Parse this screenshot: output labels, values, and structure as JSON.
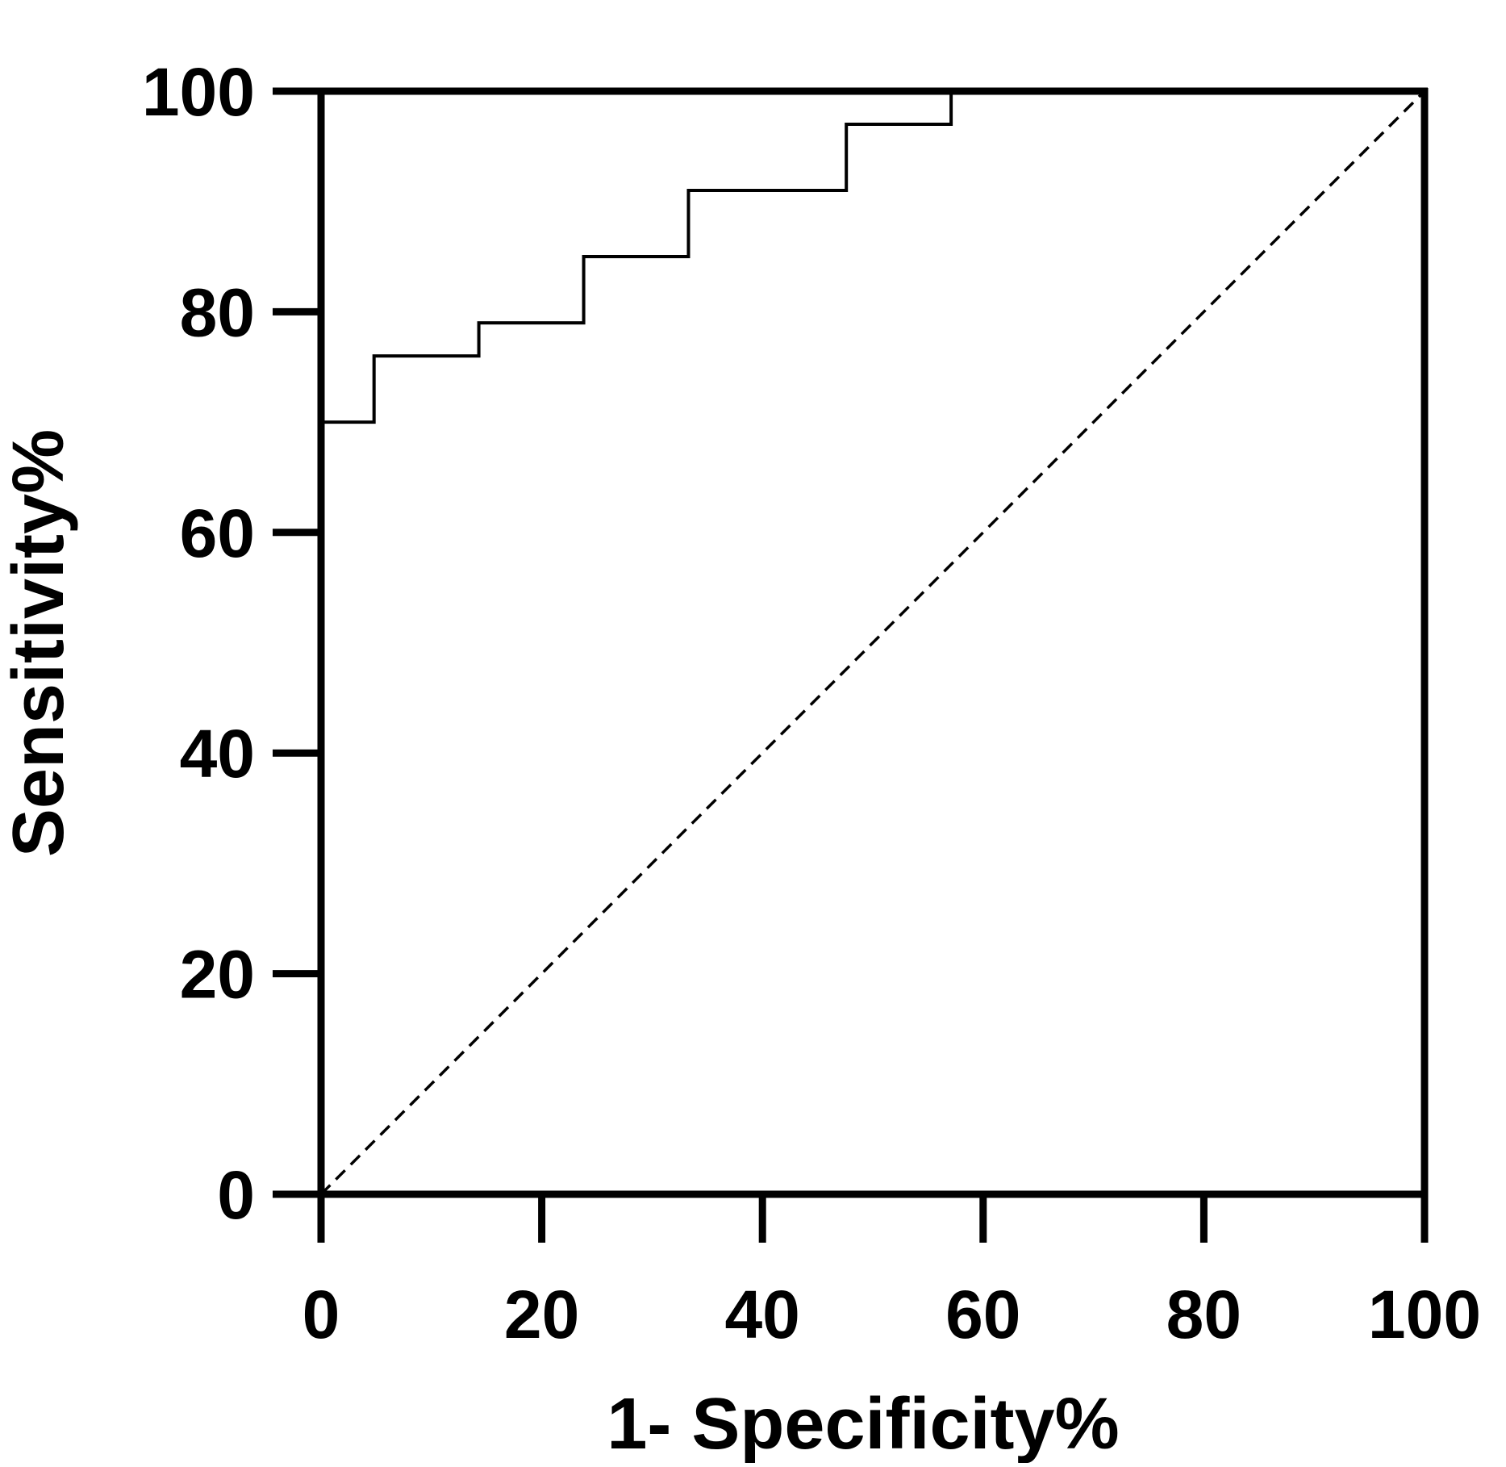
{
  "chart_data": {
    "type": "line",
    "title": "",
    "xlabel": "1- Specificity%",
    "ylabel": "Sensitivity%",
    "xlim": [
      0,
      100
    ],
    "ylim": [
      0,
      100
    ],
    "x_ticks": [
      "0",
      "20",
      "40",
      "60",
      "80",
      "100"
    ],
    "y_ticks": [
      "0",
      "20",
      "40",
      "60",
      "80",
      "100"
    ],
    "grid": false,
    "legend": "none",
    "series": [
      {
        "style": "solid-step",
        "color": "#000000",
        "points": [
          [
            0,
            70
          ],
          [
            4.8,
            70
          ],
          [
            4.8,
            76
          ],
          [
            14.3,
            76
          ],
          [
            14.3,
            79
          ],
          [
            23.8,
            79
          ],
          [
            23.8,
            85
          ],
          [
            33.3,
            85
          ],
          [
            33.3,
            91
          ],
          [
            47.6,
            91
          ],
          [
            47.6,
            97
          ],
          [
            57.1,
            97
          ],
          [
            57.1,
            100
          ]
        ]
      },
      {
        "style": "dashed-reference",
        "color": "#000000",
        "points": [
          [
            0,
            0
          ],
          [
            100,
            100
          ]
        ]
      }
    ]
  }
}
